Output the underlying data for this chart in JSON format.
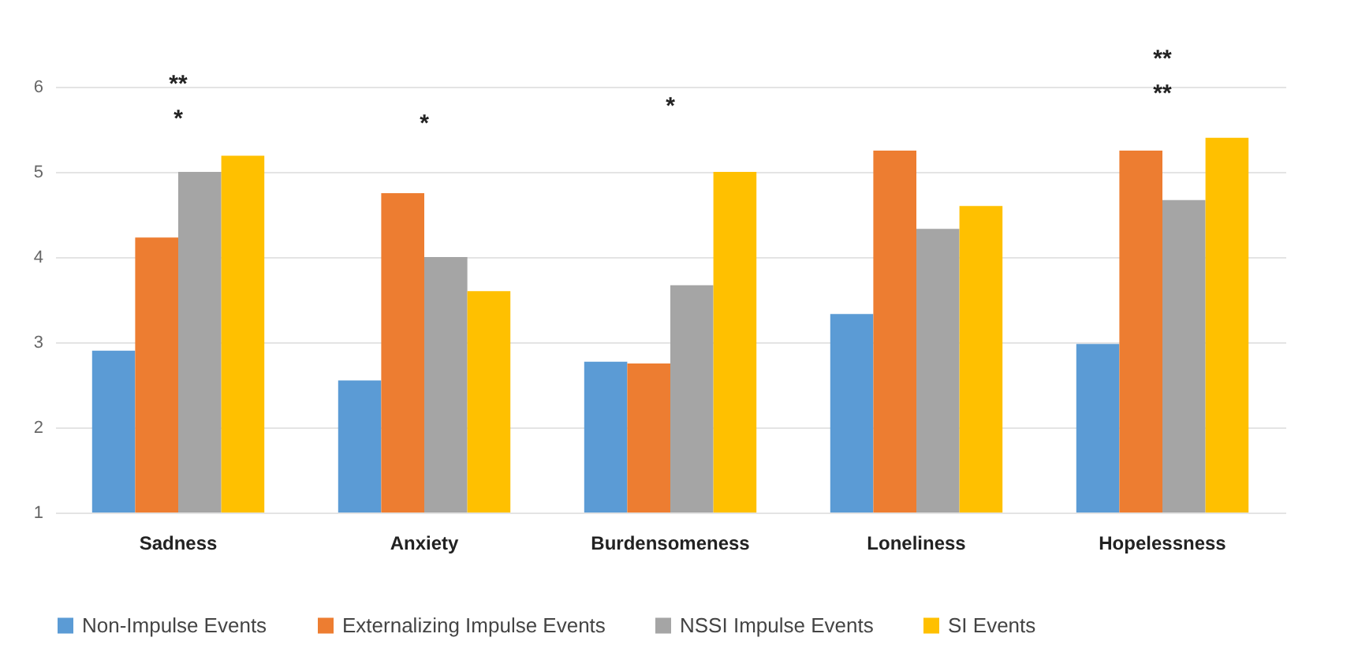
{
  "chart_data": {
    "type": "bar",
    "categories": [
      "Sadness",
      "Anxiety",
      "Burdensomeness",
      "Loneliness",
      "Hopelessness"
    ],
    "series": [
      {
        "name": "Non-Impulse Events",
        "color": "#5b9bd5",
        "values": [
          2.9,
          2.55,
          2.77,
          3.33,
          2.98
        ]
      },
      {
        "name": "Externalizing Impulse Events",
        "color": "#ed7d31",
        "values": [
          4.23,
          4.75,
          2.75,
          5.25,
          5.25
        ]
      },
      {
        "name": "NSSI Impulse Events",
        "color": "#a5a5a5",
        "values": [
          5.0,
          4.0,
          3.67,
          4.33,
          4.67
        ]
      },
      {
        "name": "SI Events",
        "color": "#ffc000",
        "values": [
          5.19,
          3.6,
          5.0,
          4.6,
          5.4
        ]
      }
    ],
    "ylim": [
      1,
      6
    ],
    "yticks": [
      1,
      2,
      3,
      4,
      5,
      6
    ],
    "grid": "y",
    "legend": "bottom",
    "annotations": [
      "**",
      "*",
      "*",
      "*",
      "**",
      "**"
    ]
  }
}
